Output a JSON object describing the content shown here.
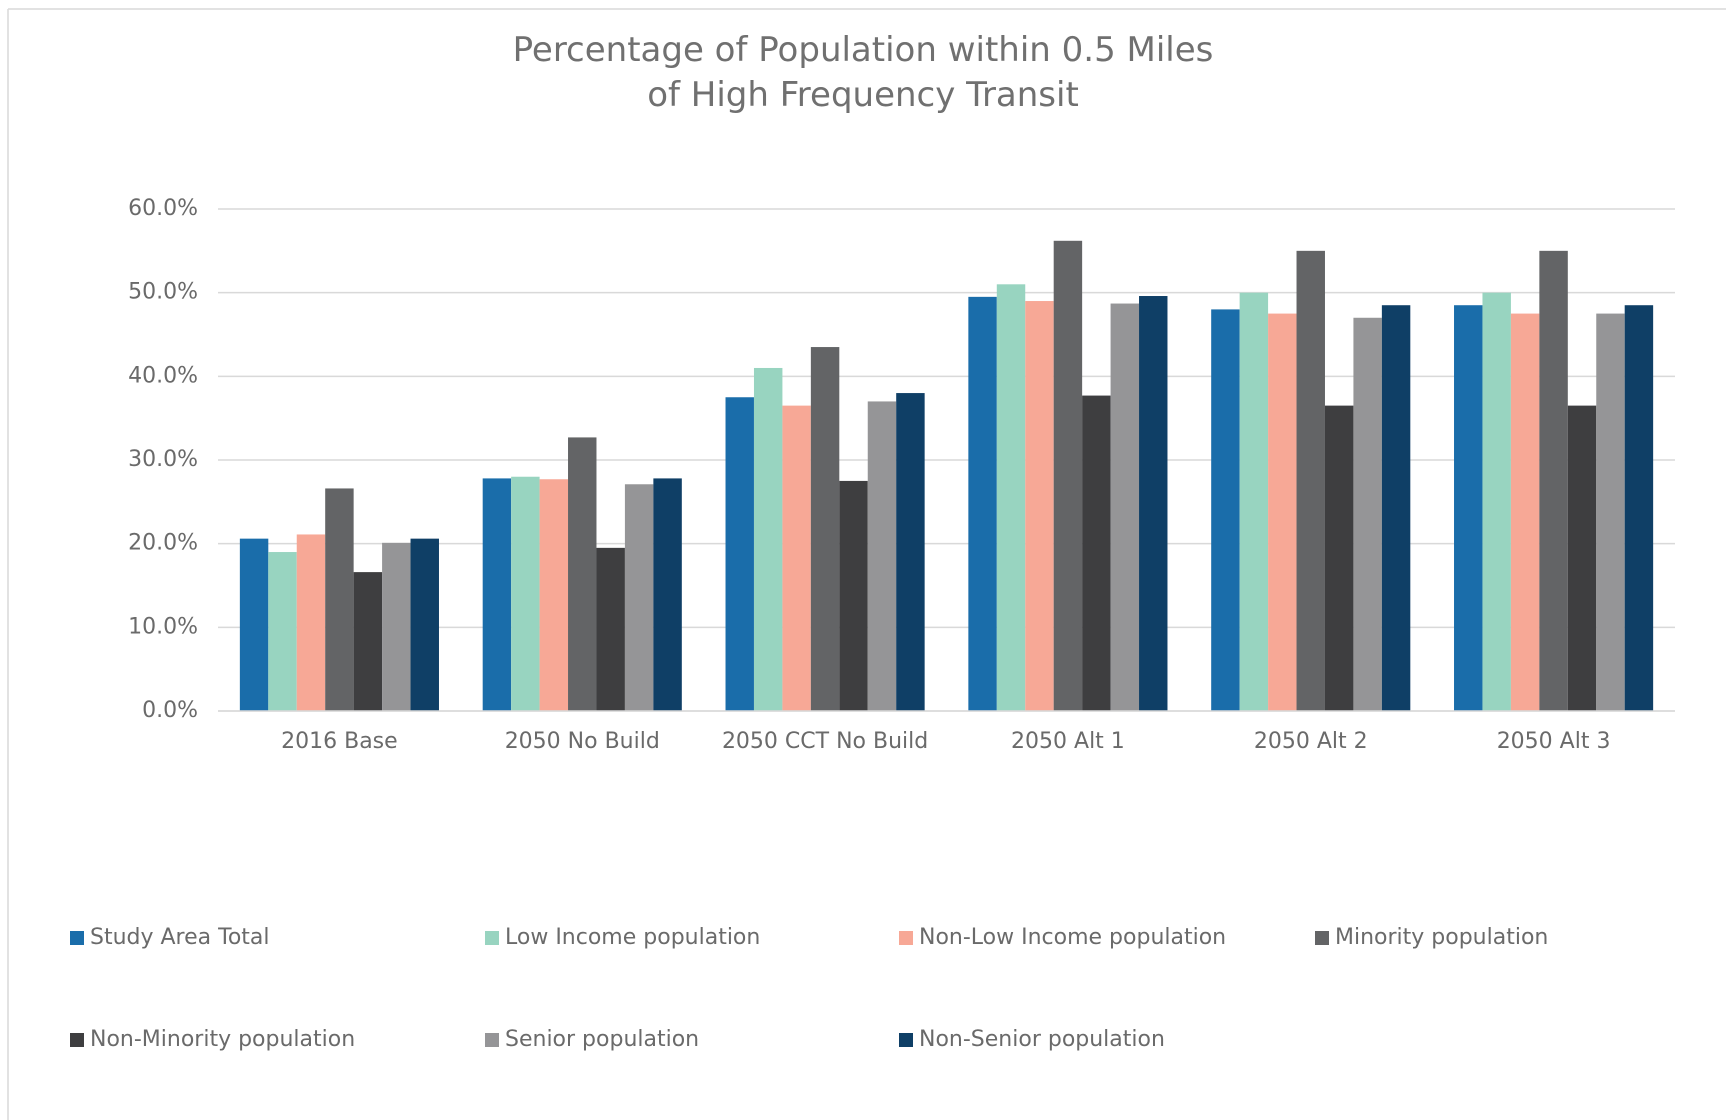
{
  "chart_data": {
    "type": "bar",
    "title": "Percentage of Population within 0.5 Miles of High Frequency Transit",
    "categories": [
      "2016 Base",
      "2050 No Build",
      "2050 CCT No Build",
      "2050 Alt 1",
      "2050 Alt 2",
      "2050 Alt 3"
    ],
    "series": [
      {
        "name": "Study Area Total",
        "color": "#1a6daa",
        "values": [
          20.6,
          27.8,
          37.5,
          49.5,
          48.0,
          48.5
        ]
      },
      {
        "name": "Low Income population",
        "color": "#98d4c0",
        "values": [
          19.0,
          28.0,
          41.0,
          51.0,
          50.0,
          50.0
        ]
      },
      {
        "name": "Non-Low Income population",
        "color": "#f7a896",
        "values": [
          21.1,
          27.7,
          36.5,
          49.0,
          47.5,
          47.5
        ]
      },
      {
        "name": "Minority population",
        "color": "#636466",
        "values": [
          26.6,
          32.7,
          43.5,
          56.2,
          55.0,
          55.0
        ]
      },
      {
        "name": "Non-Minority population",
        "color": "#3e3e40",
        "values": [
          16.6,
          19.5,
          27.5,
          37.7,
          36.5,
          36.5
        ]
      },
      {
        "name": "Senior population",
        "color": "#959597",
        "values": [
          20.1,
          27.1,
          37.0,
          48.7,
          47.0,
          47.5
        ]
      },
      {
        "name": "Non-Senior population",
        "color": "#0f3f66",
        "values": [
          20.6,
          27.8,
          38.0,
          49.6,
          48.5,
          48.5
        ]
      }
    ],
    "ylim": [
      0,
      60
    ],
    "yticks": [
      {
        "value": 0,
        "label": "0.0%"
      },
      {
        "value": 10,
        "label": "10.0%"
      },
      {
        "value": 20,
        "label": "20.0%"
      },
      {
        "value": 30,
        "label": "30.0%"
      },
      {
        "value": 40,
        "label": "40.0%"
      },
      {
        "value": 50,
        "label": "50.0%"
      },
      {
        "value": 60,
        "label": "60.0%"
      }
    ],
    "grid": true,
    "legend": "bottom"
  }
}
